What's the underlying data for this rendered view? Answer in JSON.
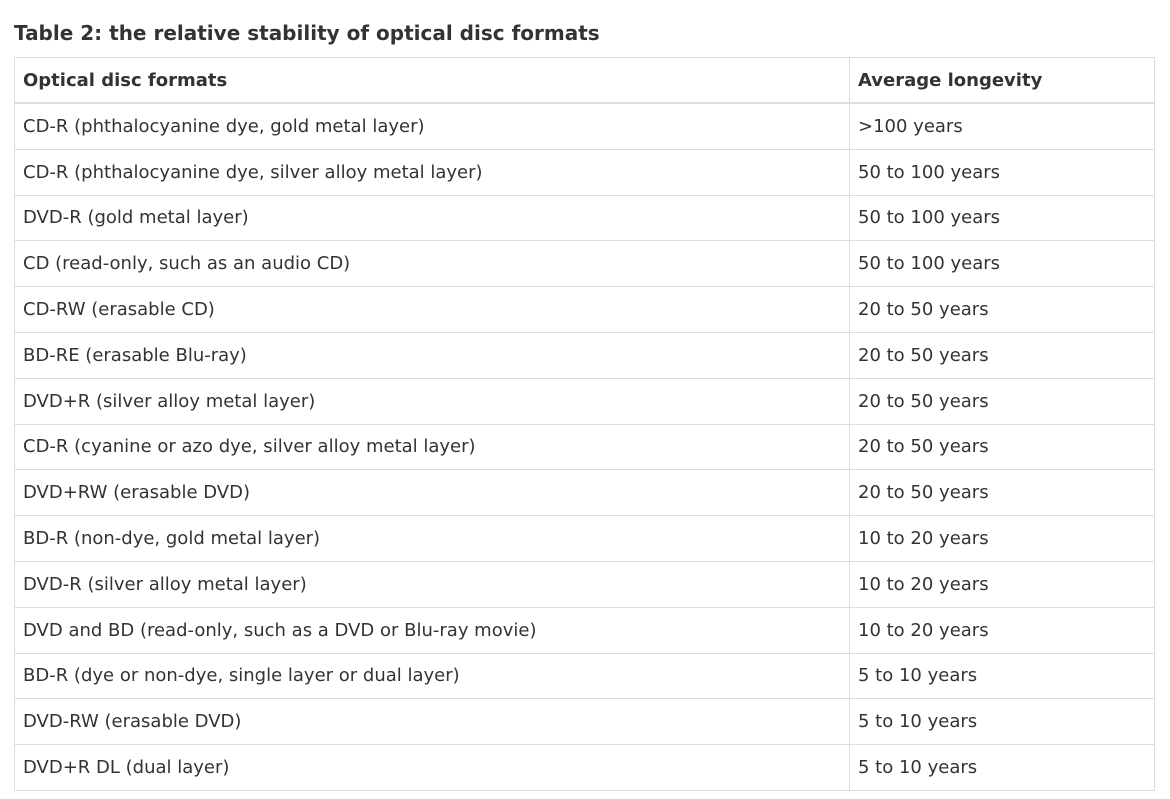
{
  "caption": "Table 2: the relative stability of optical disc formats",
  "table": {
    "headers": [
      "Optical disc formats",
      "Average longevity"
    ],
    "rows": [
      [
        "CD-R (phthalocyanine dye, gold metal layer)",
        ">100 years"
      ],
      [
        "CD-R (phthalocyanine dye, silver alloy metal layer)",
        "50 to 100 years"
      ],
      [
        "DVD-R (gold metal layer)",
        "50 to 100 years"
      ],
      [
        "CD (read-only, such as an audio CD)",
        "50 to 100 years"
      ],
      [
        "CD-RW (erasable CD)",
        "20 to 50 years"
      ],
      [
        "BD-RE (erasable Blu-ray)",
        "20 to 50 years"
      ],
      [
        "DVD+R (silver alloy metal layer)",
        "20 to 50 years"
      ],
      [
        "CD-R (cyanine or azo dye, silver alloy metal layer)",
        "20 to 50 years"
      ],
      [
        "DVD+RW (erasable DVD)",
        "20 to 50 years"
      ],
      [
        "BD-R (non-dye, gold metal layer)",
        "10 to 20 years"
      ],
      [
        "DVD-R (silver alloy metal layer)",
        "10 to 20 years"
      ],
      [
        "DVD and BD (read-only, such as a DVD or Blu-ray movie)",
        "10 to 20 years"
      ],
      [
        "BD-R (dye or non-dye, single layer or dual layer)",
        "5 to 10 years"
      ],
      [
        "DVD-RW (erasable DVD)",
        "5 to 10 years"
      ],
      [
        "DVD+R DL (dual layer)",
        "5 to 10 years"
      ]
    ]
  }
}
